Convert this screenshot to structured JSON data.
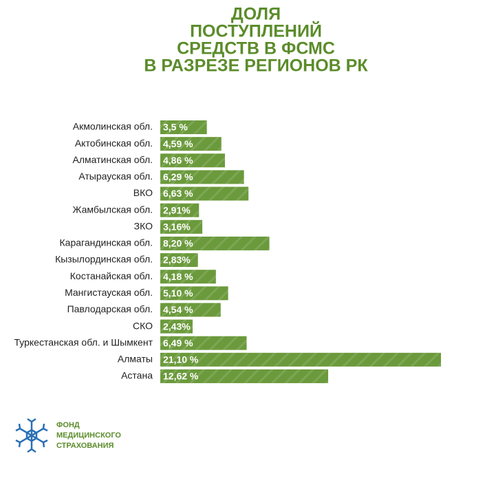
{
  "chart_data": {
    "type": "barh",
    "title": [
      "ДОЛЯ",
      "ПОСТУПЛЕНИЙ",
      "СРЕДСТВ В ФСМС",
      "В РАЗРЕЗЕ РЕГИОНОВ РК"
    ],
    "categories": [
      "Акмолинская обл.",
      "Актобинская обл.",
      "Алматинская обл.",
      "Атырауская обл.",
      "ВКО",
      "Жамбылская обл.",
      "ЗКО",
      "Карагандинская обл.",
      "Кызылординская обл.",
      "Костанайская обл.",
      "Мангистауская обл.",
      "Павлодарская обл.",
      "СКО",
      "Туркестанская обл. и Шымкент",
      "Алматы",
      "Астана"
    ],
    "values": [
      3.5,
      4.59,
      4.86,
      6.29,
      6.63,
      2.91,
      3.16,
      8.2,
      2.83,
      4.18,
      5.1,
      4.54,
      2.43,
      6.49,
      21.1,
      12.62
    ],
    "value_labels": [
      "3,5 %",
      "4,59 %",
      "4,86 %",
      "6,29 %",
      "6,63 %",
      "2,91%",
      "3,16%",
      "8,20 %",
      "2,83%",
      "4,18 %",
      "5,10 %",
      "4,54 %",
      "2,43%",
      "6,49 %",
      "21,10 %",
      "12,62 %"
    ],
    "color": "#6b9a3c"
  },
  "logo": {
    "lines": [
      "ФОНД",
      "МЕДИЦИНСКОГО",
      "СТРАХОВАНИЯ"
    ]
  }
}
